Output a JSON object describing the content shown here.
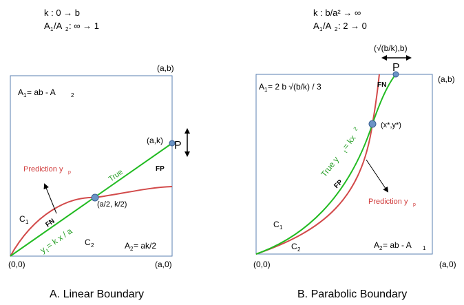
{
  "colors": {
    "box": "#5a7fb0",
    "true_line": "#22bb22",
    "prediction": "#d24a4a",
    "point": "#6a93c6",
    "green_text": "#2a9a2a",
    "red_text": "#d03a3a"
  },
  "left": {
    "header_k": "k  : 0 → b",
    "header_ratio_a": "A",
    "header_ratio_sub1": "1",
    "header_ratio_mid": "/A",
    "header_ratio_sub2": "2",
    "header_ratio_rest": " : ∞ → 1",
    "corner_ab": "(a,b)",
    "corner_00": "(0,0)",
    "corner_a0": "(a,0)",
    "a1_main": "A",
    "a1_sub": "1",
    "a1_rest": " = ab - A",
    "a1_sub2": "2",
    "point_ak": "(a,k)",
    "point_P": "P",
    "FP": "FP",
    "FN": "FN",
    "true_label": "True",
    "prediction_main": "Prediction y",
    "prediction_sub": "p",
    "midpoint": "(a/2, k/2)",
    "C1": "C",
    "C1_sub": "1",
    "C2": "C",
    "C2_sub": "2",
    "yt_main": "y",
    "yt_sub": "t",
    "yt_rest": " = k x / a",
    "a2_main": "A",
    "a2_sub": "2",
    "a2_rest": " = ak/2",
    "caption": "A. Linear Boundary"
  },
  "right": {
    "header_k": "k  : b/a² → ∞",
    "header_ratio_a": "A",
    "header_ratio_sub1": "1",
    "header_ratio_mid": "/A",
    "header_ratio_sub2": "2",
    "header_ratio_rest": " : 2 → 0",
    "top_point": "(√(b/k),b)",
    "point_P": "P",
    "corner_ab": "(a,b)",
    "corner_00": "(0,0)",
    "corner_a0": "(a,0)",
    "a1_main": "A",
    "a1_sub": "1",
    "a1_rest": " = 2 b √(b/k) / 3",
    "FN": "FN",
    "FP": "FP",
    "intersection": "(x*,y*)",
    "true_main": "True   y",
    "true_sub": "t",
    "true_rest": " = kx",
    "true_sup": "2",
    "prediction_main": "Prediction y",
    "prediction_sub": "p",
    "C1": "C",
    "C1_sub": "1",
    "C2": "C",
    "C2_sub": "2",
    "a2_main": "A",
    "a2_sub": "2",
    "a2_rest": " = ab - A",
    "a2_sub2": "1",
    "caption": "B. Parabolic Boundary"
  }
}
